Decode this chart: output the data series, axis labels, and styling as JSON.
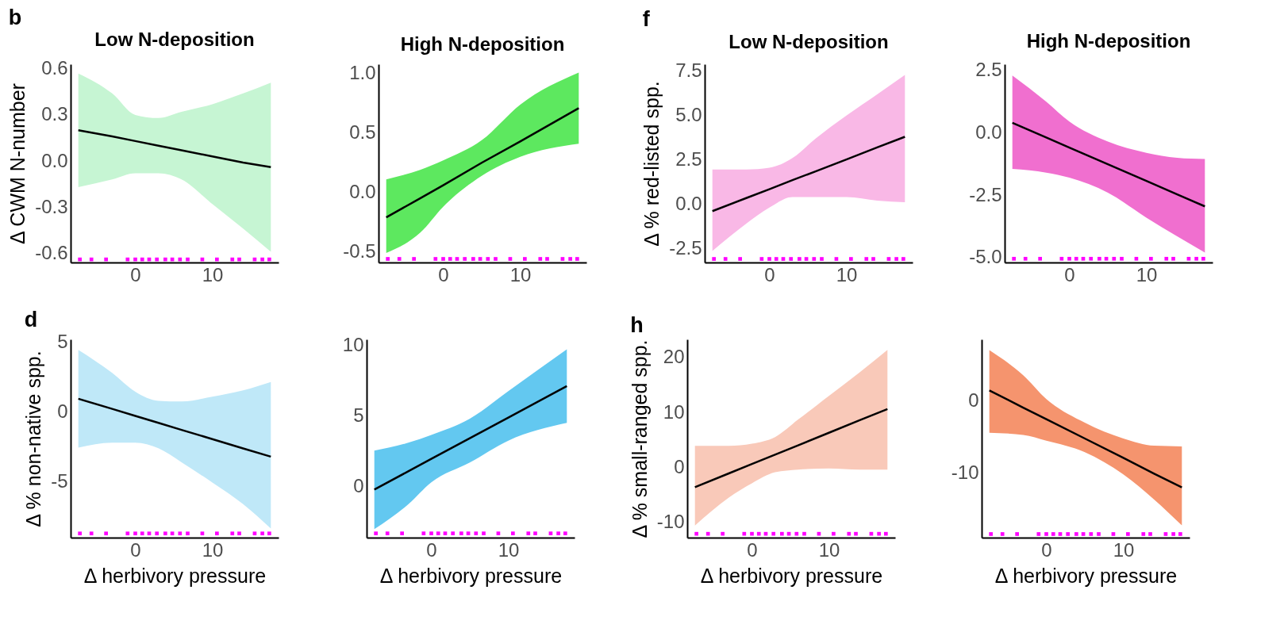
{
  "chart_data": [
    {
      "type": "line",
      "title": "Low N-deposition",
      "ylabel": "Δ CWM N-number",
      "annotations": [
        "b"
      ],
      "xlim": [
        -8.4,
        18.6
      ],
      "xticks": [
        0,
        10
      ],
      "ylim": [
        -0.66,
        0.63
      ],
      "yticks": [
        0.6,
        0.3,
        {
          "value": 0,
          "label": "0.0"
        },
        -0.3,
        -0.6
      ],
      "grid": false,
      "series": [
        {
          "color": "#000000",
          "colors": [
            "#c6f5d3",
            "#c6f5d3",
            "#c6f5d3",
            "#c6f5d3",
            "#c6f5d3",
            "#c6f5d3",
            "#c6f5d3",
            "#c6f5d3"
          ],
          "x": [
            -7.4,
            -3,
            0,
            3,
            6,
            10,
            14,
            17.6
          ],
          "values": [
            0.2,
            0.16,
            0.13,
            0.1,
            0.07,
            0.03,
            -0.01,
            -0.04
          ],
          "lower": [
            -0.17,
            -0.12,
            -0.08,
            -0.08,
            -0.12,
            -0.28,
            -0.44,
            -0.59
          ],
          "upper": [
            0.57,
            0.44,
            0.3,
            0.28,
            0.32,
            0.37,
            0.44,
            0.51
          ]
        },
        {
          "type": "scatter",
          "marker": "square",
          "color": "#ff00ff",
          "x": [
            -7.2,
            -5.7,
            -3.8,
            -1,
            0,
            0.9,
            1.8,
            2.8,
            3.9,
            4.8,
            5.8,
            6.8,
            8.7,
            10.6,
            12.6,
            13.5,
            15.5,
            16.5,
            17.4
          ],
          "values": [
            -0.64,
            -0.64,
            -0.64,
            -0.64,
            -0.64,
            -0.64,
            -0.64,
            -0.64,
            -0.64,
            -0.64,
            -0.64,
            -0.64,
            -0.64,
            -0.64,
            -0.64,
            -0.64,
            -0.64,
            -0.64,
            -0.64
          ]
        }
      ]
    },
    {
      "type": "line",
      "title": "High N-deposition",
      "xlim": [
        -8.4,
        18.6
      ],
      "xticks": [
        0,
        10
      ],
      "ylim": [
        -0.59,
        1.08
      ],
      "yticks": [
        -0.5,
        {
          "value": 0,
          "label": "0.0"
        },
        0.5,
        {
          "value": 1,
          "label": "1.0"
        }
      ],
      "grid": false,
      "series": [
        {
          "color": "#000000",
          "colors": [
            "#5de85f",
            "#5de85f",
            "#5de85f",
            "#5de85f",
            "#5de85f",
            "#5de85f"
          ],
          "x": [
            -7.4,
            -3,
            0,
            5,
            10,
            17.6
          ],
          "values": [
            -0.21,
            -0.05,
            0.06,
            0.25,
            0.43,
            0.71
          ],
          "lower": [
            -0.51,
            -0.34,
            -0.12,
            0.14,
            0.3,
            0.41
          ],
          "upper": [
            0.11,
            0.19,
            0.27,
            0.44,
            0.74,
            1.01
          ]
        },
        {
          "type": "scatter",
          "marker": "square",
          "color": "#ff00ff",
          "x": [
            -7.2,
            -5.7,
            -3.8,
            -1,
            0,
            0.9,
            1.8,
            2.8,
            3.9,
            4.8,
            5.8,
            6.8,
            8.7,
            10.6,
            12.6,
            13.5,
            15.5,
            16.5,
            17.4
          ],
          "values": [
            -0.56,
            -0.56,
            -0.56,
            -0.56,
            -0.56,
            -0.56,
            -0.56,
            -0.56,
            -0.56,
            -0.56,
            -0.56,
            -0.56,
            -0.56,
            -0.56,
            -0.56,
            -0.56,
            -0.56,
            -0.56,
            -0.56
          ]
        }
      ]
    },
    {
      "type": "line",
      "title": "Low N-deposition",
      "ylabel": "Δ % red-listed spp.",
      "annotations": [
        "f"
      ],
      "xlim": [
        -8.4,
        18.6
      ],
      "xticks": [
        0,
        10
      ],
      "ylim": [
        -3.3,
        7.9
      ],
      "yticks": [
        -2.5,
        {
          "value": 0,
          "label": "0.0"
        },
        2.5,
        {
          "value": 5,
          "label": "5.0"
        },
        7.5
      ],
      "grid": false,
      "series": [
        {
          "color": "#000000",
          "colors": [
            "#f9b8e6",
            "#f9b8e6",
            "#f9b8e6",
            "#f9b8e6",
            "#f9b8e6",
            "#f9b8e6",
            "#f9b8e6",
            "#f9b8e6"
          ],
          "x": [
            -7.4,
            -3,
            0,
            3,
            6,
            10,
            14,
            17.6
          ],
          "values": [
            -0.4,
            0.34,
            0.84,
            1.35,
            1.85,
            2.52,
            3.2,
            3.8
          ],
          "lower": [
            -2.65,
            -1.1,
            -0.2,
            0.4,
            0.4,
            0.4,
            0.2,
            0.1
          ],
          "upper": [
            1.95,
            1.95,
            2.05,
            2.6,
            3.7,
            5.0,
            6.2,
            7.3
          ]
        },
        {
          "type": "scatter",
          "marker": "square",
          "color": "#ff00ff",
          "x": [
            -7.2,
            -5.7,
            -3.8,
            -1,
            0,
            0.9,
            1.8,
            2.8,
            3.9,
            4.8,
            5.8,
            6.8,
            8.7,
            10.6,
            12.6,
            13.5,
            15.5,
            16.5,
            17.4
          ],
          "values": [
            -3.1,
            -3.1,
            -3.1,
            -3.1,
            -3.1,
            -3.1,
            -3.1,
            -3.1,
            -3.1,
            -3.1,
            -3.1,
            -3.1,
            -3.1,
            -3.1,
            -3.1,
            -3.1,
            -3.1,
            -3.1,
            -3.1
          ]
        }
      ]
    },
    {
      "type": "line",
      "title": "High N-deposition",
      "xlim": [
        -8.4,
        18.6
      ],
      "xticks": [
        0,
        10
      ],
      "ylim": [
        -5.2,
        2.75
      ],
      "yticks": [
        {
          "value": -5,
          "label": "-5.0"
        },
        -2.5,
        {
          "value": 0,
          "label": "0.0"
        },
        2.5
      ],
      "grid": false,
      "series": [
        {
          "color": "#000000",
          "colors": [
            "#f06fcf",
            "#f06fcf",
            "#f06fcf",
            "#f06fcf",
            "#f06fcf",
            "#f06fcf",
            "#f06fcf"
          ],
          "x": [
            -7.4,
            -3,
            0,
            5,
            10,
            14,
            17.6
          ],
          "values": [
            0.4,
            -0.19,
            -0.59,
            -1.26,
            -1.93,
            -2.47,
            -2.95
          ],
          "lower": [
            -1.45,
            -1.6,
            -1.8,
            -2.4,
            -3.4,
            -4.15,
            -4.8
          ],
          "upper": [
            2.3,
            1.25,
            0.45,
            -0.35,
            -0.8,
            -1.0,
            -1.05
          ]
        },
        {
          "type": "scatter",
          "marker": "square",
          "color": "#ff00ff",
          "x": [
            -7.2,
            -5.7,
            -3.8,
            -1,
            0,
            0.9,
            1.8,
            2.8,
            3.9,
            4.8,
            5.8,
            6.8,
            8.7,
            10.6,
            12.6,
            13.5,
            15.5,
            16.5,
            17.4
          ],
          "values": [
            -5.05,
            -5.05,
            -5.05,
            -5.05,
            -5.05,
            -5.05,
            -5.05,
            -5.05,
            -5.05,
            -5.05,
            -5.05,
            -5.05,
            -5.05,
            -5.05,
            -5.05,
            -5.05,
            -5.05,
            -5.05,
            -5.05
          ]
        }
      ]
    },
    {
      "type": "line",
      "xlabel": "Δ herbivory pressure",
      "ylabel": "Δ % non-native spp.",
      "annotations": [
        "d"
      ],
      "xlim": [
        -8.4,
        18.6
      ],
      "xticks": [
        0,
        10
      ],
      "ylim": [
        -9,
        5.2
      ],
      "yticks": [
        -5,
        0,
        5
      ],
      "grid": false,
      "series": [
        {
          "color": "#000000",
          "colors": [
            "#bfe8f8",
            "#bfe8f8",
            "#bfe8f8",
            "#bfe8f8",
            "#bfe8f8",
            "#bfe8f8",
            "#bfe8f8",
            "#bfe8f8"
          ],
          "x": [
            -7.4,
            -3,
            0,
            3,
            6,
            10,
            14,
            17.6
          ],
          "values": [
            0.95,
            0.22,
            -0.28,
            -0.78,
            -1.28,
            -1.94,
            -2.61,
            -3.2
          ],
          "lower": [
            -2.55,
            -2.2,
            -2.2,
            -2.6,
            -3.6,
            -5.05,
            -6.6,
            -8.35
          ],
          "upper": [
            4.45,
            2.8,
            1.45,
            0.8,
            0.75,
            1.1,
            1.55,
            2.15
          ]
        },
        {
          "type": "scatter",
          "marker": "square",
          "color": "#ff00ff",
          "x": [
            -7.2,
            -5.7,
            -3.8,
            -1,
            0,
            0.9,
            1.8,
            2.8,
            3.9,
            4.8,
            5.8,
            6.8,
            8.7,
            10.6,
            12.6,
            13.5,
            15.5,
            16.5,
            17.4
          ],
          "values": [
            -8.7,
            -8.7,
            -8.7,
            -8.7,
            -8.7,
            -8.7,
            -8.7,
            -8.7,
            -8.7,
            -8.7,
            -8.7,
            -8.7,
            -8.7,
            -8.7,
            -8.7,
            -8.7,
            -8.7,
            -8.7,
            -8.7
          ]
        }
      ]
    },
    {
      "type": "line",
      "xlabel": "Δ herbivory pressure",
      "xlim": [
        -8.4,
        18.6
      ],
      "xticks": [
        0,
        10
      ],
      "ylim": [
        -3.6,
        10.4
      ],
      "yticks": [
        0,
        5,
        10
      ],
      "grid": false,
      "series": [
        {
          "color": "#000000",
          "colors": [
            "#63c8f0",
            "#63c8f0",
            "#63c8f0",
            "#63c8f0",
            "#63c8f0",
            "#63c8f0"
          ],
          "x": [
            -7.4,
            -3,
            0,
            5,
            10,
            17.6
          ],
          "values": [
            -0.2,
            1.08,
            1.96,
            3.42,
            4.88,
            7.1
          ],
          "lower": [
            -3.0,
            -1.25,
            0.3,
            1.7,
            3.25,
            4.5
          ],
          "upper": [
            2.55,
            3.1,
            3.65,
            4.8,
            6.75,
            9.7
          ]
        },
        {
          "type": "scatter",
          "marker": "square",
          "color": "#ff00ff",
          "x": [
            -7.2,
            -5.7,
            -3.8,
            -1,
            0,
            0.9,
            1.8,
            2.8,
            3.9,
            4.8,
            5.8,
            6.8,
            8.7,
            10.6,
            12.6,
            13.5,
            15.5,
            16.5,
            17.4
          ],
          "values": [
            -3.3,
            -3.3,
            -3.3,
            -3.3,
            -3.3,
            -3.3,
            -3.3,
            -3.3,
            -3.3,
            -3.3,
            -3.3,
            -3.3,
            -3.3,
            -3.3,
            -3.3,
            -3.3,
            -3.3,
            -3.3,
            -3.3
          ]
        }
      ]
    },
    {
      "type": "line",
      "xlabel": "Δ herbivory pressure",
      "ylabel": "Δ % small-ranged spp.",
      "annotations": [
        "h"
      ],
      "xlim": [
        -8.4,
        18.6
      ],
      "xticks": [
        0,
        10
      ],
      "ylim": [
        -12.8,
        23.3
      ],
      "yticks": [
        -10,
        0,
        10,
        20
      ],
      "grid": false,
      "series": [
        {
          "color": "#000000",
          "colors": [
            "#f9c9b9",
            "#f9c9b9",
            "#f9c9b9",
            "#f9c9b9",
            "#f9c9b9",
            "#f9c9b9",
            "#f9c9b9",
            "#f9c9b9"
          ],
          "x": [
            -7.4,
            -3,
            0,
            3,
            6,
            10,
            14,
            17.6
          ],
          "values": [
            -3.6,
            -1.1,
            0.6,
            2.3,
            4.0,
            6.3,
            8.6,
            10.6
          ],
          "lower": [
            -10.6,
            -5.5,
            -2.9,
            -0.9,
            -0.4,
            -0.2,
            -0.4,
            -0.4
          ],
          "upper": [
            3.9,
            3.9,
            4.3,
            5.5,
            8.7,
            13.0,
            17.3,
            21.4
          ]
        },
        {
          "type": "scatter",
          "marker": "square",
          "color": "#ff00ff",
          "x": [
            -7.2,
            -5.7,
            -3.8,
            -1,
            0,
            0.9,
            1.8,
            2.8,
            3.9,
            4.8,
            5.8,
            6.8,
            8.7,
            10.6,
            12.6,
            13.5,
            15.5,
            16.5,
            17.4
          ],
          "values": [
            -12.1,
            -12.1,
            -12.1,
            -12.1,
            -12.1,
            -12.1,
            -12.1,
            -12.1,
            -12.1,
            -12.1,
            -12.1,
            -12.1,
            -12.1,
            -12.1,
            -12.1,
            -12.1,
            -12.1,
            -12.1,
            -12.1
          ]
        }
      ]
    },
    {
      "type": "line",
      "xlabel": "Δ herbivory pressure",
      "xlim": [
        -8.4,
        18.6
      ],
      "xticks": [
        0,
        10
      ],
      "ylim": [
        -19,
        8.6
      ],
      "yticks": [
        -10,
        0
      ],
      "grid": false,
      "series": [
        {
          "color": "#000000",
          "colors": [
            "#f5946e",
            "#f5946e",
            "#f5946e",
            "#f5946e",
            "#f5946e",
            "#f5946e",
            "#f5946e"
          ],
          "x": [
            -7.4,
            -3,
            0,
            5,
            10,
            14,
            17.6
          ],
          "values": [
            1.5,
            -0.9,
            -2.5,
            -5.2,
            -7.9,
            -10.1,
            -12.0
          ],
          "lower": [
            -4.4,
            -4.7,
            -5.5,
            -7.1,
            -10.2,
            -13.7,
            -17.3
          ],
          "upper": [
            7.1,
            3.6,
            0.3,
            -3.0,
            -5.2,
            -6.2,
            -6.3
          ]
        },
        {
          "type": "scatter",
          "marker": "square",
          "color": "#ff00ff",
          "x": [
            -7.2,
            -5.7,
            -3.8,
            -1,
            0,
            0.9,
            1.8,
            2.8,
            3.9,
            4.8,
            5.8,
            6.8,
            8.7,
            10.6,
            12.6,
            13.5,
            15.5,
            16.5,
            17.4
          ],
          "values": [
            -18.5,
            -18.5,
            -18.5,
            -18.5,
            -18.5,
            -18.5,
            -18.5,
            -18.5,
            -18.5,
            -18.5,
            -18.5,
            -18.5,
            -18.5,
            -18.5,
            -18.5,
            -18.5,
            -18.5,
            -18.5,
            -18.5
          ]
        }
      ]
    }
  ]
}
